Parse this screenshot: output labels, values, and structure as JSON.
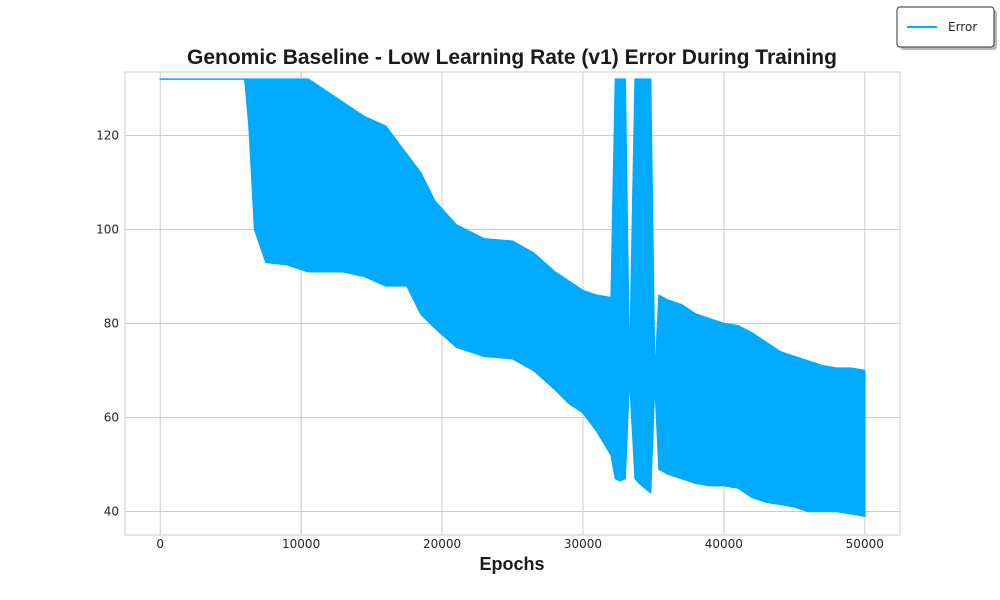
{
  "chart_data": {
    "type": "line",
    "title": "Genomic Baseline - Low Learning Rate (v1) Error During Training",
    "xlabel": "Epochs",
    "ylabel": "",
    "xlim": [
      -2500,
      52500
    ],
    "ylim": [
      35,
      133.5
    ],
    "xticks": [
      0,
      10000,
      20000,
      30000,
      40000,
      50000
    ],
    "yticks": [
      40,
      60,
      80,
      100,
      120
    ],
    "grid": true,
    "legend": "top-right",
    "series": [
      {
        "name": "Error",
        "color": "#00aaff",
        "x": [
          0,
          6000,
          6300,
          6700,
          7500,
          9000,
          10500,
          11500,
          13000,
          14500,
          16000,
          17500,
          18500,
          19500,
          21000,
          23000,
          25000,
          26500,
          28000,
          29000,
          30000,
          31000,
          32000,
          32300,
          32600,
          33000,
          33300,
          33700,
          34000,
          34400,
          34800,
          35100,
          35400,
          36000,
          37000,
          38000,
          39000,
          40000,
          41000,
          42000,
          43000,
          44000,
          45000,
          46000,
          47000,
          48000,
          49000,
          50000
        ],
        "upper": [
          132,
          132,
          132,
          132,
          132,
          132,
          132,
          130,
          127,
          124,
          122,
          116,
          112,
          106,
          101,
          98,
          97.5,
          95,
          91,
          89,
          87,
          86,
          85.5,
          132,
          132,
          132,
          69,
          132,
          132,
          132,
          132,
          68,
          86,
          85,
          84,
          82,
          81,
          80,
          79.5,
          78,
          76,
          74,
          73,
          72,
          71,
          70.5,
          70.5,
          70
        ],
        "lower": [
          132,
          132,
          122,
          100,
          93,
          92.5,
          91,
          91,
          91,
          90,
          88,
          88,
          82,
          79,
          75,
          73,
          72.5,
          70,
          66,
          63,
          61,
          57,
          52,
          47,
          46.5,
          47,
          69,
          47,
          46,
          45,
          44,
          68,
          49,
          48,
          47,
          46,
          45.5,
          45.5,
          45,
          43,
          42,
          41.5,
          41,
          40,
          40,
          40,
          39.5,
          39
        ]
      }
    ]
  }
}
